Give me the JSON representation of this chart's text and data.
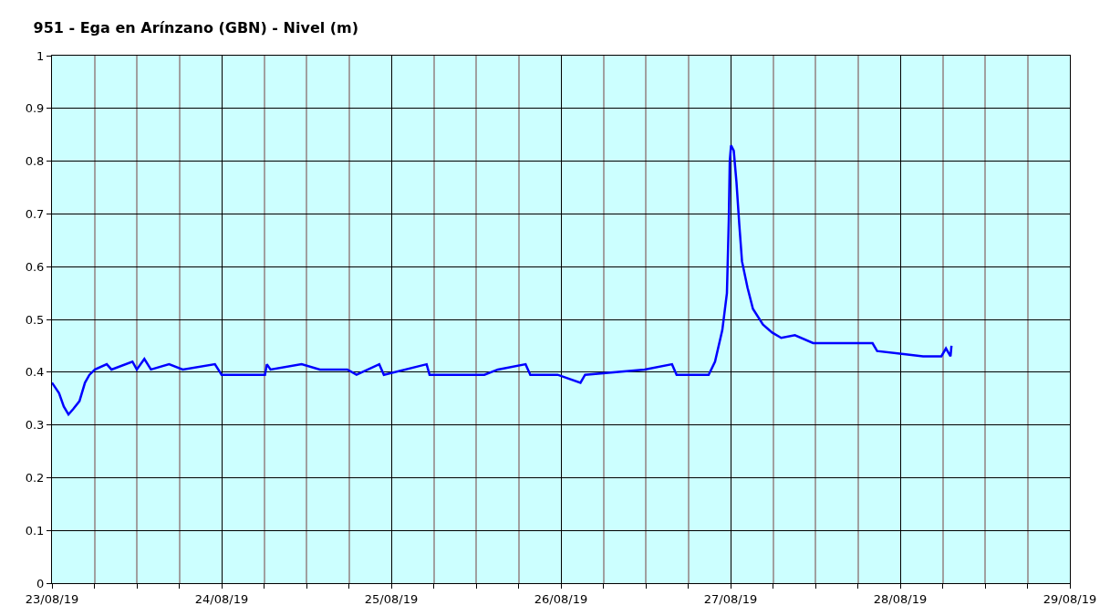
{
  "chart_data": {
    "type": "line",
    "title": "951 - Ega en Arínzano (GBN) - Nivel (m)",
    "x": [
      "--08-23T00:00",
      "--08-23T01:00",
      "--08-23T01:40",
      "--08-23T02:20",
      "--08-23T03:00",
      "--08-23T03:53",
      "--08-23T04:40",
      "--08-23T05:18",
      "--08-23T06:05",
      "--08-23T07:45",
      "--08-23T08:25",
      "--08-23T11:23",
      "--08-23T12:00",
      "--08-23T13:04",
      "--08-23T14:00",
      "--08-23T16:34",
      "--08-23T18:30",
      "--08-23T23:03",
      "--08-24T00:00",
      "--08-24T06:08",
      "--08-24T06:24",
      "--08-24T06:55",
      "--08-24T11:19",
      "--08-24T13:54",
      "--08-24T17:47",
      "--08-24T19:05",
      "--08-24T22:18",
      "--08-24T22:57",
      "--08-25T05:00",
      "--08-25T05:25",
      "--08-25T13:10",
      "--08-25T15:05",
      "--08-25T19:00",
      "--08-25T19:40",
      "--08-25T23:32",
      "--08-26T02:46",
      "--08-26T03:25",
      "--08-26T11:50",
      "--08-26T15:43",
      "--08-26T16:22",
      "--08-26T20:54",
      "--08-26T21:48",
      "--08-26T22:50",
      "--08-26T23:29",
      "--08-26T23:45",
      "--08-26T23:53",
      "--08-27T00:04",
      "--08-27T00:27",
      "--08-27T00:50",
      "--08-27T01:14",
      "--08-27T01:37",
      "--08-27T02:24",
      "--08-27T03:10",
      "--08-27T04:35",
      "--08-27T05:53",
      "--08-27T07:10",
      "--08-27T09:06",
      "--08-27T11:41",
      "--08-27T15:34",
      "--08-27T20:05",
      "--08-27T20:44",
      "--08-27T23:57",
      "--08-28T03:14",
      "--08-28T05:49",
      "--08-28T06:28",
      "--08-28T07:07",
      "--08-28T07:15"
    ],
    "series": [
      {
        "color": "#0000ff",
        "values": [
          0.38,
          0.36,
          0.335,
          0.32,
          0.33,
          0.345,
          0.38,
          0.395,
          0.405,
          0.415,
          0.405,
          0.42,
          0.405,
          0.425,
          0.405,
          0.415,
          0.405,
          0.415,
          0.395,
          0.395,
          0.415,
          0.405,
          0.415,
          0.405,
          0.405,
          0.395,
          0.415,
          0.395,
          0.415,
          0.395,
          0.395,
          0.405,
          0.415,
          0.395,
          0.395,
          0.38,
          0.395,
          0.405,
          0.415,
          0.395,
          0.395,
          0.42,
          0.48,
          0.55,
          0.69,
          0.8,
          0.83,
          0.82,
          0.76,
          0.68,
          0.61,
          0.56,
          0.52,
          0.49,
          0.475,
          0.465,
          0.47,
          0.455,
          0.455,
          0.455,
          0.44,
          0.435,
          0.43,
          0.43,
          0.445,
          0.43,
          0.45
        ]
      }
    ],
    "xlim": [
      "--08-23",
      "--08-29"
    ],
    "xticks": [
      {
        "value": "--08-23",
        "label": "23/08/19"
      },
      {
        "value": "--08-23T06:00",
        "label": null
      },
      {
        "value": "--08-23T12:00",
        "label": null
      },
      {
        "value": "--08-23T18:00",
        "label": null
      },
      {
        "value": "--08-24",
        "label": "24/08/19"
      },
      {
        "value": "--08-24T06:00",
        "label": null
      },
      {
        "value": "--08-24T12:00",
        "label": null
      },
      {
        "value": "--08-24T18:00",
        "label": null
      },
      {
        "value": "--08-25",
        "label": "25/08/19"
      },
      {
        "value": "--08-25T06:00",
        "label": null
      },
      {
        "value": "--08-25T12:00",
        "label": null
      },
      {
        "value": "--08-25T18:00",
        "label": null
      },
      {
        "value": "--08-26",
        "label": "26/08/19"
      },
      {
        "value": "--08-26T06:00",
        "label": null
      },
      {
        "value": "--08-26T12:00",
        "label": null
      },
      {
        "value": "--08-26T18:00",
        "label": null
      },
      {
        "value": "--08-27",
        "label": "27/08/19"
      },
      {
        "value": "--08-27T06:00",
        "label": null
      },
      {
        "value": "--08-27T12:00",
        "label": null
      },
      {
        "value": "--08-27T18:00",
        "label": null
      },
      {
        "value": "--08-28",
        "label": "28/08/19"
      },
      {
        "value": "--08-28T06:00",
        "label": null
      },
      {
        "value": "--08-28T12:00",
        "label": null
      },
      {
        "value": "--08-28T18:00",
        "label": null
      },
      {
        "value": "--08-29",
        "label": "29/08/19"
      }
    ],
    "ylim": [
      0,
      1
    ],
    "yticks": [
      0,
      0.1,
      0.2,
      0.3,
      0.4,
      0.5,
      0.6,
      0.7,
      0.8,
      0.9,
      1
    ],
    "grid": true,
    "marker": "none",
    "line_style": "solid"
  }
}
